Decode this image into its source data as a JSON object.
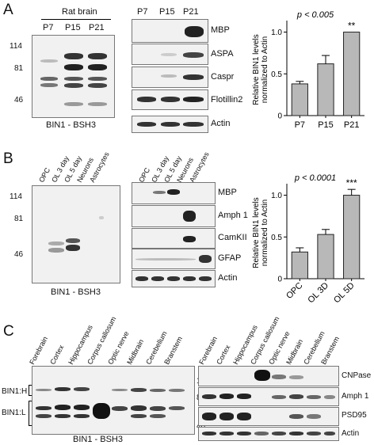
{
  "panels": {
    "A": {
      "letter": "A",
      "header": "Rat brain",
      "lanes": [
        "P7",
        "P15",
        "P21"
      ],
      "mw": [
        "114",
        "81",
        "46"
      ],
      "blot_caption": "BIN1 - BSH3",
      "strip_lanes": [
        "P7",
        "P15",
        "P21"
      ],
      "strip_labels": [
        "MBP",
        "ASPA",
        "Caspr",
        "Flotillin2",
        "Actin"
      ]
    },
    "B": {
      "letter": "B",
      "lanes": [
        "OPC",
        "OL 3 day",
        "OL 5 day",
        "Neurons",
        "Astrocytes"
      ],
      "mw": [
        "114",
        "81",
        "46"
      ],
      "blot_caption": "BIN1 - BSH3",
      "strip_labels": [
        "MBP",
        "Amph 1",
        "CamKII",
        "GFAP",
        "Actin"
      ]
    },
    "C": {
      "letter": "C",
      "lanes": [
        "Forebrain",
        "Cortex",
        "Hippocampus",
        "Corpus callosum",
        "Optic nerve",
        "Midbrain",
        "Cerebellum",
        "Branstem"
      ],
      "left_labels": [
        "BIN1:H",
        "BIN1:L"
      ],
      "mw": [
        "114",
        "81",
        "46"
      ],
      "blot_caption": "BIN1 - BSH3",
      "strip_labels": [
        "CNPase",
        "Amph 1",
        "PSD95",
        "Actin"
      ]
    }
  },
  "chart_data": [
    {
      "type": "bar",
      "categories": [
        "P7",
        "P15",
        "P21"
      ],
      "values": [
        0.38,
        0.62,
        1.0
      ],
      "errors": [
        0.03,
        0.1,
        0.0
      ],
      "significance": [
        "",
        "",
        "**"
      ],
      "title": "p < 0.005",
      "ylabel": "Relative BIN1 levels normalized to Actin",
      "ylim": [
        0,
        1.1
      ],
      "yticks": [
        "0",
        "0.5",
        "1.0"
      ]
    },
    {
      "type": "bar",
      "categories": [
        "OPC",
        "OL 3D",
        "OL 5D"
      ],
      "values": [
        0.32,
        0.53,
        1.0
      ],
      "errors": [
        0.05,
        0.06,
        0.07
      ],
      "significance": [
        "",
        "",
        "***"
      ],
      "title": "p < 0.0001",
      "ylabel": "Relative BIN1 levels normalized to Actin",
      "ylim": [
        0,
        1.1
      ],
      "yticks": [
        "0",
        "0.5",
        "1.0"
      ]
    }
  ]
}
